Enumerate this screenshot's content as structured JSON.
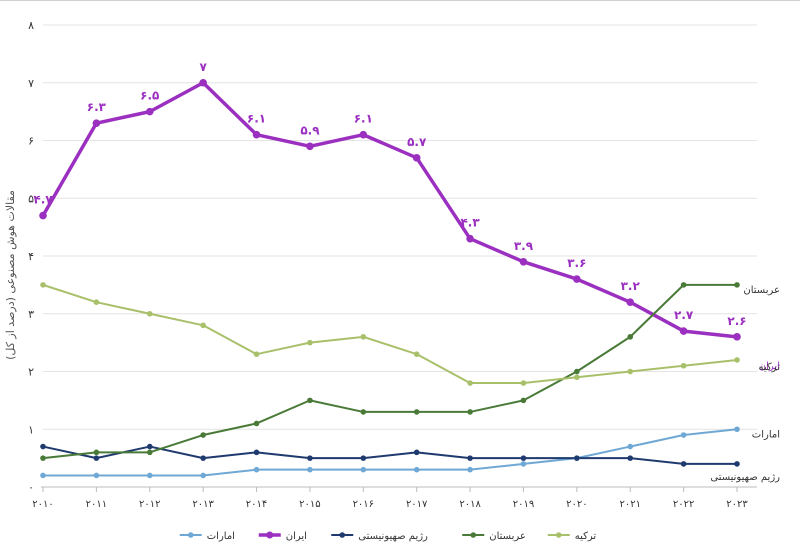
{
  "chart_data": {
    "type": "line",
    "title": "",
    "ylabel": "مقالات هوش مصنوعی (درصد از کل)",
    "xlabel": "",
    "ylim": [
      0,
      8
    ],
    "yticks": [
      "۰",
      "۱",
      "۲",
      "۳",
      "۴",
      "۵",
      "۶",
      "۷",
      "۸"
    ],
    "categories": [
      "۲۰۱۰",
      "۲۰۱۱",
      "۲۰۱۲",
      "۲۰۱۳",
      "۲۰۱۴",
      "۲۰۱۵",
      "۲۰۱۶",
      "۲۰۱۷",
      "۲۰۱۸",
      "۲۰۱۹",
      "۲۰۲۰",
      "۲۰۲۱",
      "۲۰۲۲",
      "۲۰۲۳"
    ],
    "series": [
      {
        "key": "emirates",
        "name": "امارات",
        "color": "#6fa8d4",
        "width": 2,
        "values": [
          0.2,
          0.2,
          0.2,
          0.2,
          0.3,
          0.3,
          0.3,
          0.3,
          0.3,
          0.4,
          0.5,
          0.7,
          0.9,
          1.0
        ],
        "end_label": "امارات"
      },
      {
        "key": "iran",
        "name": "ایران",
        "color": "#9b30c0",
        "width": 3.5,
        "values": [
          4.7,
          6.3,
          6.5,
          7.0,
          6.1,
          5.9,
          6.1,
          5.7,
          4.3,
          3.9,
          3.6,
          3.2,
          2.7,
          2.6
        ],
        "data_labels": [
          "۴.۷",
          "۶.۳",
          "۶.۵",
          "۷",
          "۶.۱",
          "۵.۹",
          "۶.۱",
          "۵.۷",
          "۴.۳",
          "۳.۹",
          "۳.۶",
          "۳.۲",
          "۲.۷",
          "۲.۶"
        ],
        "end_label": "ایران"
      },
      {
        "key": "zionist",
        "name": "رژیم صهیونیستی",
        "color": "#1f3a6e",
        "width": 2,
        "values": [
          0.7,
          0.5,
          0.7,
          0.5,
          0.6,
          0.5,
          0.5,
          0.6,
          0.5,
          0.5,
          0.5,
          0.5,
          0.4,
          0.4
        ],
        "end_label": "رژیم صهیونیستی"
      },
      {
        "key": "saudi",
        "name": "عربستان",
        "color": "#4a7a38",
        "width": 2,
        "values": [
          0.5,
          0.6,
          0.6,
          0.9,
          1.1,
          1.5,
          1.3,
          1.3,
          1.3,
          1.5,
          2.0,
          2.6,
          3.5,
          3.5
        ],
        "end_label": "عربستان"
      },
      {
        "key": "turkey",
        "name": "ترکیه",
        "color": "#a9c06a",
        "width": 2,
        "values": [
          3.5,
          3.2,
          3.0,
          2.8,
          2.3,
          2.5,
          2.6,
          2.3,
          1.8,
          1.8,
          1.9,
          2.0,
          2.1,
          2.2
        ],
        "end_label": "ترکیه"
      }
    ],
    "legend": {
      "position": "bottom",
      "order": [
        "emirates",
        "iran",
        "zionist",
        "saudi",
        "turkey"
      ]
    }
  }
}
